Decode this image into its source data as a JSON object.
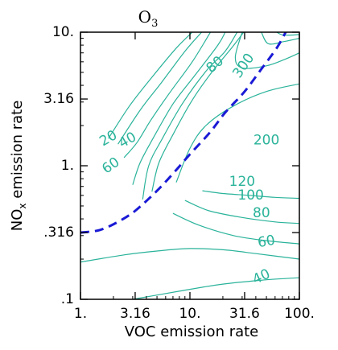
{
  "chart_data": {
    "type": "contour",
    "title": {
      "main": "O",
      "sub": "3"
    },
    "xlabel": "VOC emission rate",
    "ylabel": {
      "pre": "NO",
      "sub": "x",
      "post": " emission rate"
    },
    "xscale": "log",
    "yscale": "log",
    "xlim": [
      1,
      100
    ],
    "ylim": [
      0.1,
      10
    ],
    "x_ticks": [
      {
        "value": 1,
        "label": "1."
      },
      {
        "value": 3.16,
        "label": "3.16"
      },
      {
        "value": 10,
        "label": "10."
      },
      {
        "value": 31.6,
        "label": "31.6"
      },
      {
        "value": 100,
        "label": "100."
      }
    ],
    "y_ticks": [
      {
        "value": 0.1,
        "label": ".1"
      },
      {
        "value": 0.316,
        "label": ".316"
      },
      {
        "value": 1,
        "label": "1."
      },
      {
        "value": 3.16,
        "label": "3.16"
      },
      {
        "value": 10,
        "label": "10."
      }
    ],
    "contour_color": "#2ab39a",
    "ridge_color": "#1a1ad6",
    "contours": [
      {
        "level": "20",
        "points": [
          [
            1.8,
            1.6
          ],
          [
            2.8,
            2.8
          ],
          [
            4.5,
            4.6
          ],
          [
            7.5,
            7.6
          ],
          [
            10.5,
            10
          ]
        ]
      },
      {
        "level": "40",
        "points": [
          [
            2.2,
            1.45
          ],
          [
            3.5,
            2.6
          ],
          [
            5.5,
            4.2
          ],
          [
            9,
            7.2
          ],
          [
            12.8,
            10
          ]
        ]
      },
      {
        "level": "60",
        "points": [
          [
            2.5,
            1.15
          ],
          [
            3.3,
            1.5
          ],
          [
            4.4,
            2.2
          ],
          [
            6.5,
            3.5
          ],
          [
            10.5,
            6
          ],
          [
            15.4,
            10
          ]
        ]
      },
      {
        "level": "80",
        "points": [
          [
            3.0,
            0.72
          ],
          [
            3.5,
            1.05
          ],
          [
            4.6,
            1.6
          ],
          [
            7,
            2.9
          ],
          [
            11,
            4.7
          ],
          [
            18,
            8
          ],
          [
            21,
            10
          ]
        ]
      },
      {
        "level": "100",
        "points": [
          [
            3.7,
            0.56
          ],
          [
            4.2,
            1.0
          ],
          [
            5.6,
            1.6
          ],
          [
            8.5,
            2.9
          ],
          [
            14,
            5.1
          ],
          [
            21,
            7.2
          ],
          [
            27,
            10
          ]
        ]
      },
      {
        "level": "120",
        "points": [
          [
            4.5,
            0.64
          ],
          [
            5.2,
            1.05
          ],
          [
            7.1,
            1.75
          ],
          [
            10.5,
            3.1
          ],
          [
            15.8,
            5.0
          ],
          [
            24,
            7.6
          ],
          [
            31,
            10
          ]
        ]
      },
      {
        "level": "200",
        "points": [
          [
            7.5,
            0.75
          ],
          [
            10,
            1.35
          ],
          [
            14,
            2.0
          ],
          [
            25,
            2.8
          ],
          [
            50,
            3.6
          ],
          [
            100,
            4.1
          ]
        ]
      },
      {
        "level": "300",
        "points": [
          [
            30,
            10
          ],
          [
            26,
            6.5
          ],
          [
            30,
            5.4
          ],
          [
            50,
            5.6
          ],
          [
            75,
            6.3
          ],
          [
            100,
            7.0
          ]
        ]
      },
      {
        "level": "",
        "points": [
          [
            45,
            10
          ],
          [
            52,
            8.2
          ],
          [
            72,
            8.5
          ],
          [
            100,
            9.0
          ]
        ]
      },
      {
        "level": "",
        "points": [
          [
            62,
            10
          ],
          [
            72,
            9.5
          ],
          [
            100,
            9.6
          ]
        ]
      },
      {
        "level": "",
        "points": [
          [
            13,
            0.65
          ],
          [
            20,
            0.62
          ],
          [
            35,
            0.6
          ],
          [
            60,
            0.58
          ],
          [
            100,
            0.57
          ]
        ]
      },
      {
        "level": "",
        "points": [
          [
            9,
            0.55
          ],
          [
            15,
            0.46
          ],
          [
            30,
            0.41
          ],
          [
            60,
            0.38
          ],
          [
            100,
            0.37
          ]
        ]
      },
      {
        "level": "",
        "points": [
          [
            7,
            0.44
          ],
          [
            12,
            0.36
          ],
          [
            25,
            0.3
          ],
          [
            50,
            0.275
          ],
          [
            100,
            0.26
          ]
        ]
      },
      {
        "level": "",
        "points": [
          [
            1,
            0.19
          ],
          [
            2.5,
            0.215
          ],
          [
            5,
            0.23
          ],
          [
            10,
            0.24
          ],
          [
            20,
            0.235
          ],
          [
            40,
            0.22
          ],
          [
            100,
            0.2
          ]
        ]
      },
      {
        "level": "",
        "points": [
          [
            3,
            0.1
          ],
          [
            8,
            0.115
          ],
          [
            20,
            0.13
          ],
          [
            50,
            0.14
          ],
          [
            100,
            0.145
          ]
        ]
      }
    ],
    "contour_labels": [
      {
        "text": "20",
        "x": 1.8,
        "y": 1.6,
        "angle": -30
      },
      {
        "text": "40",
        "x": 2.7,
        "y": 1.55,
        "angle": -30
      },
      {
        "text": "60",
        "x": 1.9,
        "y": 1.0,
        "angle": -35
      },
      {
        "text": "80",
        "x": 17,
        "y": 5.7,
        "angle": -40
      },
      {
        "text": "300",
        "x": 31,
        "y": 5.6,
        "angle": -55
      },
      {
        "text": "200",
        "x": 50,
        "y": 1.55,
        "angle": 0
      },
      {
        "text": "120",
        "x": 30,
        "y": 0.76,
        "angle": 0
      },
      {
        "text": "100",
        "x": 36,
        "y": 0.6,
        "angle": 0
      },
      {
        "text": "80",
        "x": 45,
        "y": 0.44,
        "angle": 0
      },
      {
        "text": "60",
        "x": 50,
        "y": 0.27,
        "angle": -10
      },
      {
        "text": "40",
        "x": 45,
        "y": 0.147,
        "angle": -25
      }
    ],
    "ridge_line": [
      [
        1.0,
        0.316
      ],
      [
        1.5,
        0.33
      ],
      [
        2.2,
        0.38
      ],
      [
        3.16,
        0.46
      ],
      [
        5,
        0.65
      ],
      [
        7.5,
        0.93
      ],
      [
        10,
        1.22
      ],
      [
        15,
        1.75
      ],
      [
        21,
        2.5
      ],
      [
        31.6,
        3.6
      ],
      [
        45,
        5.3
      ],
      [
        62,
        7.6
      ],
      [
        75,
        10
      ]
    ]
  }
}
